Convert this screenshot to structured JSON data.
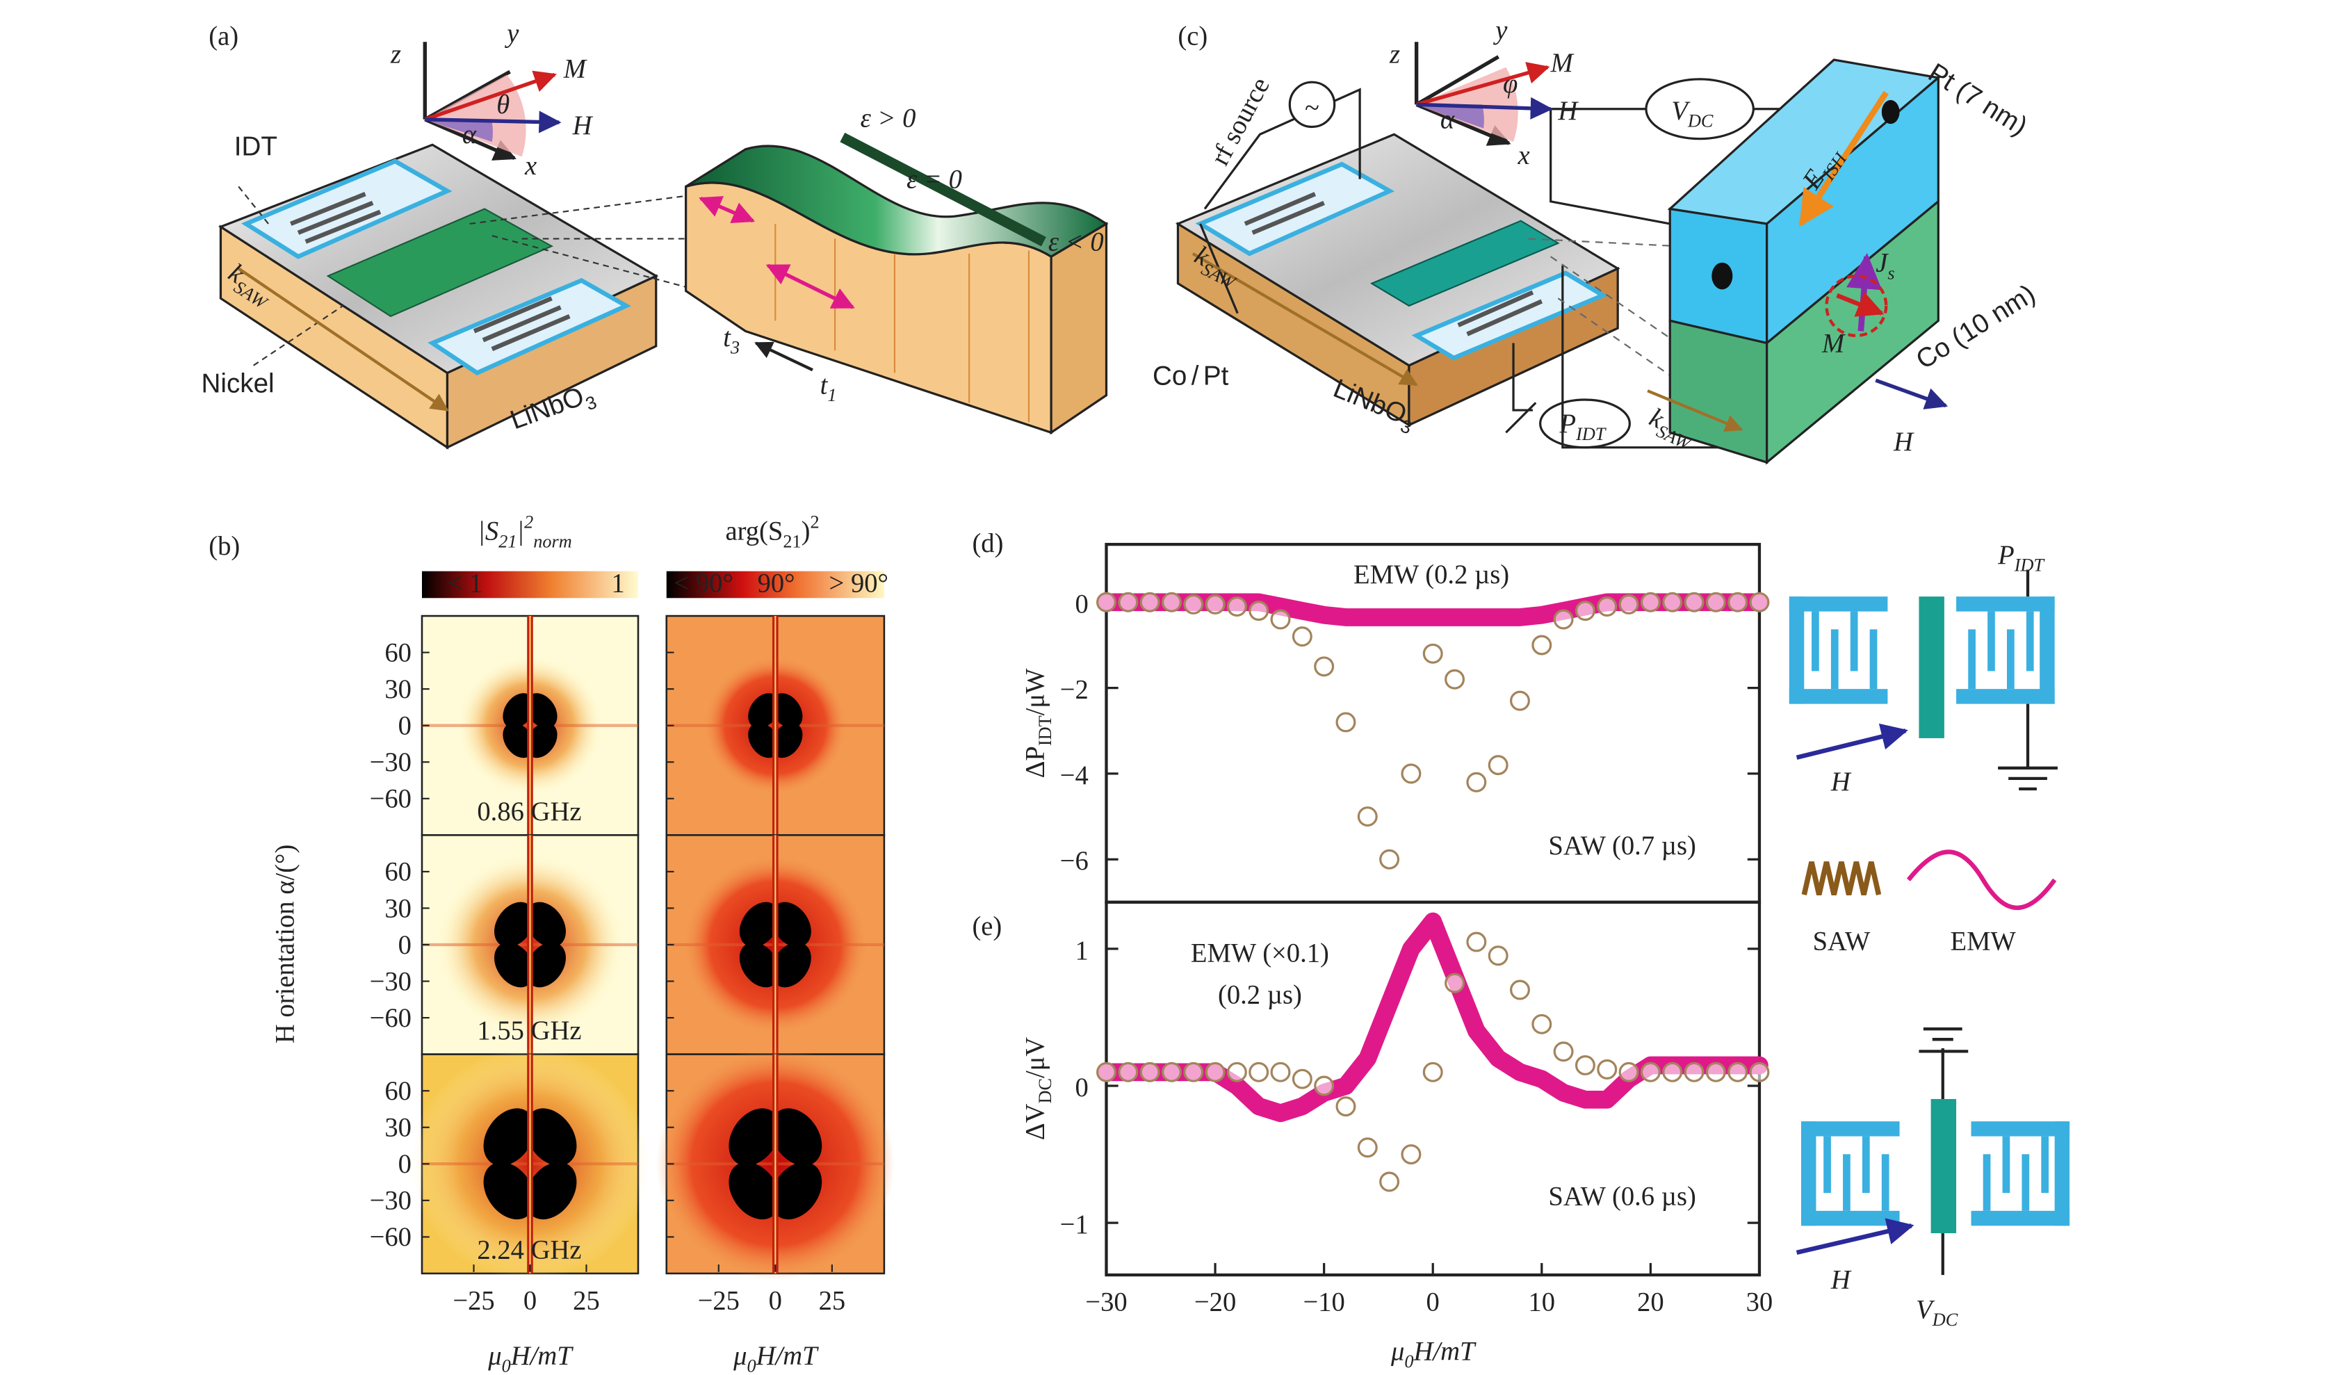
{
  "panel_a": {
    "label": "(a)",
    "axis_z": "z",
    "axis_y": "y",
    "axis_x": "x",
    "M": "M",
    "H": "H",
    "theta": "θ",
    "alpha": "α",
    "idt": "IDT",
    "nickel": "Nickel",
    "substrate": [
      "LiNbO",
      "3"
    ],
    "k_saw": [
      "k",
      "SAW"
    ],
    "strain": [
      "ε > 0",
      "ε = 0",
      "ε < 0"
    ],
    "t3": [
      "t",
      "3"
    ],
    "t1": [
      "t",
      "1"
    ]
  },
  "panel_c": {
    "label": "(c)",
    "rf_source": "rf source",
    "rf_symbol": "~",
    "axis_z": "z",
    "axis_y": "y",
    "axis_x": "x",
    "M": "M",
    "H": "H",
    "phi": "φ",
    "alpha": "α",
    "vdc": [
      "V",
      "DC"
    ],
    "pt": "Pt (7 nm)",
    "co": "Co (10 nm)",
    "eish": [
      "E",
      "ISH"
    ],
    "js": [
      "J",
      "s"
    ],
    "M2": "M",
    "co_pt": [
      "Co",
      "/",
      "Pt"
    ],
    "substrate": [
      "LiNbO",
      "3"
    ],
    "k_saw": [
      "k",
      "SAW"
    ],
    "k_saw2": [
      "k",
      "SAW"
    ],
    "pidt": [
      "P",
      "IDT"
    ],
    "H2": "H"
  },
  "panel_b": {
    "label": "(b)",
    "col_titles": [
      [
        "|S",
        "21",
        "|",
        "2",
        "norm"
      ],
      [
        "arg(S",
        "21",
        ")",
        "2"
      ]
    ],
    "colorbar_left": [
      "< 1",
      "1"
    ],
    "colorbar_right": [
      "< 90°",
      "90°",
      "> 90°"
    ],
    "frequencies": [
      "0.86 GHz",
      "1.55 GHz",
      "2.24 GHz"
    ],
    "ylabel": [
      "H",
      " orientation α/(°)"
    ],
    "xlabel": [
      "μ",
      "0",
      "H/mT"
    ],
    "ylim": [
      -90,
      90
    ],
    "yticks": [
      60,
      30,
      0,
      {
        "value": -30,
        "label": "−30"
      },
      {
        "value": -60,
        "label": "−60"
      }
    ],
    "xlim": [
      -48,
      48
    ],
    "xticks": [
      {
        "value": -25,
        "label": "−25"
      },
      0,
      25
    ]
  },
  "chart_data": [
    {
      "type": "line",
      "label": "(d)",
      "ylabel": [
        "ΔP",
        "IDT",
        "/μW"
      ],
      "xlim": [
        -30,
        30
      ],
      "ylim": [
        -7,
        1.35
      ],
      "yticks": [
        0,
        {
          "value": -2,
          "label": "−2"
        },
        {
          "value": -4,
          "label": "−4"
        },
        {
          "value": -6,
          "label": "−6"
        }
      ],
      "annotations": [
        "EMW (0.2 µs)",
        "SAW (0.7 µs)"
      ],
      "x": [
        -30,
        -28,
        -26,
        -24,
        -22,
        -20,
        -18,
        -16,
        -14,
        -12,
        -10,
        -8,
        -6,
        -4,
        -2,
        0,
        2,
        4,
        6,
        8,
        10,
        12,
        14,
        16,
        18,
        20,
        22,
        24,
        26,
        28,
        30
      ],
      "series": [
        {
          "name": "SAW",
          "color": "#a3845c",
          "marker": "circle",
          "values": [
            0,
            0,
            0,
            0,
            -0.05,
            -0.05,
            -0.1,
            -0.2,
            -0.4,
            -0.8,
            -1.5,
            -2.8,
            -5.0,
            -6.0,
            -4.0,
            -1.2,
            -1.8,
            -4.2,
            -3.8,
            -2.3,
            -1.0,
            -0.4,
            -0.2,
            -0.1,
            -0.05,
            0,
            0,
            0,
            0,
            0,
            0
          ]
        },
        {
          "name": "EMW",
          "color": "#e0198a",
          "marker": "none",
          "values": [
            0,
            0,
            0,
            0,
            0,
            0,
            0,
            0,
            -0.1,
            -0.2,
            -0.3,
            -0.35,
            -0.35,
            -0.35,
            -0.35,
            -0.35,
            -0.35,
            -0.35,
            -0.35,
            -0.35,
            -0.3,
            -0.2,
            -0.1,
            0,
            0,
            0,
            0,
            0,
            0,
            0,
            0
          ]
        }
      ]
    },
    {
      "type": "line",
      "label": "(e)",
      "ylabel": [
        "ΔV",
        "DC",
        "/μV"
      ],
      "xlabel": [
        "μ",
        "0",
        "H/mT"
      ],
      "xlim": [
        -30,
        30
      ],
      "ylim": [
        -1.38,
        1.34
      ],
      "yticks": [
        1,
        0,
        {
          "value": -1,
          "label": "−1"
        }
      ],
      "xticks": [
        {
          "value": -30,
          "label": "−30"
        },
        {
          "value": -20,
          "label": "−20"
        },
        {
          "value": -10,
          "label": "−10"
        },
        0,
        10,
        20,
        30
      ],
      "annotations": [
        "EMW (×0.1)",
        "(0.2 µs)",
        "SAW (0.6 µs)"
      ],
      "x": [
        -30,
        -28,
        -26,
        -24,
        -22,
        -20,
        -18,
        -16,
        -14,
        -12,
        -10,
        -8,
        -6,
        -4,
        -2,
        0,
        2,
        4,
        6,
        8,
        10,
        12,
        14,
        16,
        18,
        20,
        22,
        24,
        26,
        28,
        30
      ],
      "series": [
        {
          "name": "SAW",
          "color": "#a3845c",
          "marker": "circle",
          "values": [
            0.1,
            0.1,
            0.1,
            0.1,
            0.1,
            0.1,
            0.1,
            0.1,
            0.1,
            0.05,
            0.0,
            -0.15,
            -0.45,
            -0.7,
            -0.5,
            0.1,
            0.75,
            1.05,
            0.95,
            0.7,
            0.45,
            0.25,
            0.15,
            0.12,
            0.1,
            0.1,
            0.1,
            0.1,
            0.1,
            0.1,
            0.1
          ]
        },
        {
          "name": "EMW",
          "color": "#e0198a",
          "marker": "none",
          "values": [
            0.1,
            0.1,
            0.1,
            0.1,
            0.1,
            0.1,
            0.0,
            -0.15,
            -0.2,
            -0.15,
            -0.05,
            0.0,
            0.2,
            0.6,
            1.0,
            1.2,
            0.8,
            0.4,
            0.2,
            0.1,
            0.05,
            -0.05,
            -0.1,
            -0.1,
            0.05,
            0.15,
            0.15,
            0.15,
            0.15,
            0.15,
            0.15
          ]
        }
      ]
    }
  ],
  "schematic": {
    "pidt": [
      "P",
      "IDT"
    ],
    "H": "H",
    "vdc": [
      "V",
      "DC"
    ],
    "H2": "H"
  }
}
